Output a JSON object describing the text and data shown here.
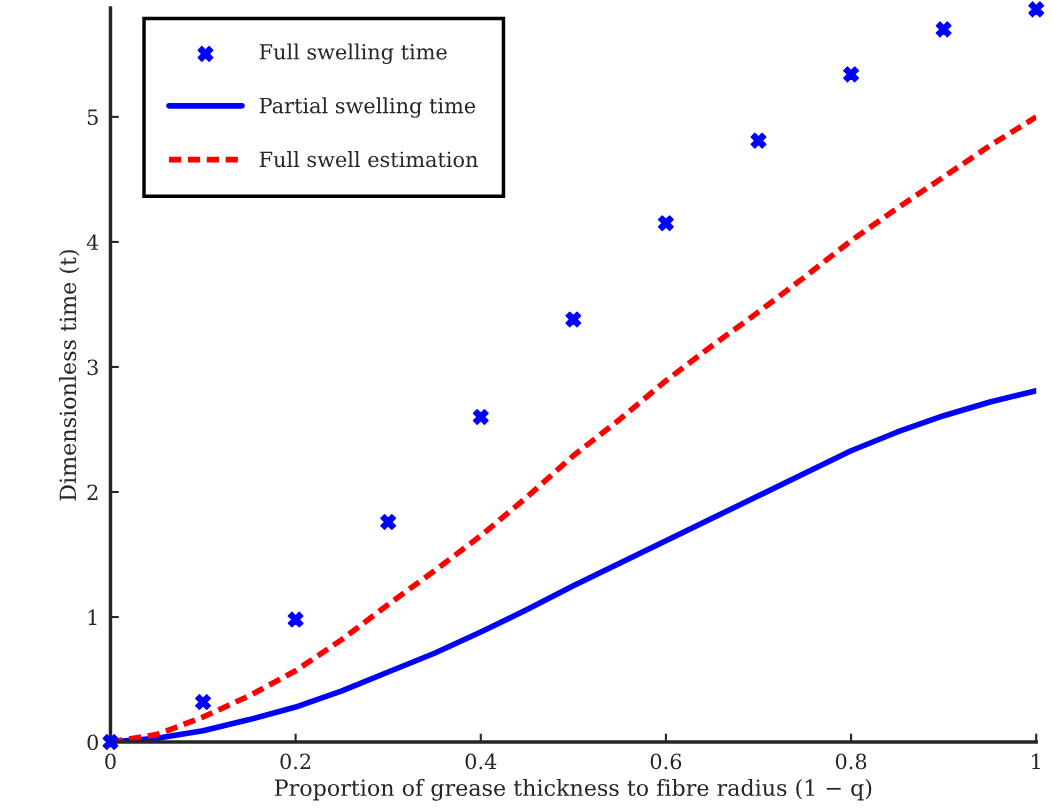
{
  "chart_data": {
    "type": "scatter",
    "xlabel": "Proportion of grease thickness to fibre radius (1 − q)",
    "ylabel": "Dimensionless time (t)",
    "xlim": [
      0,
      1
    ],
    "ylim": [
      0,
      5.87
    ],
    "xticks": [
      0,
      0.2,
      0.4,
      0.6,
      0.8,
      1
    ],
    "yticks": [
      0,
      1,
      2,
      3,
      4,
      5
    ],
    "grid": false,
    "legend": "top left",
    "series": [
      {
        "name": "Full swelling time",
        "marker": "cross",
        "color": "#0000ff",
        "x": [
          0,
          0.1,
          0.2,
          0.3,
          0.4,
          0.5,
          0.6,
          0.7,
          0.8,
          0.9,
          1
        ],
        "values": [
          0,
          0.32,
          0.98,
          1.76,
          2.6,
          3.38,
          4.15,
          4.81,
          5.34,
          5.7,
          5.86
        ]
      },
      {
        "name": "Partial swelling time",
        "type": "line",
        "marker": "none",
        "line_style": "solid",
        "color": "#0000ff",
        "x": [
          0,
          0.05,
          0.1,
          0.15,
          0.2,
          0.25,
          0.3,
          0.35,
          0.4,
          0.45,
          0.5,
          0.55,
          0.6,
          0.65,
          0.7,
          0.75,
          0.8,
          0.85,
          0.9,
          0.95,
          1
        ],
        "values": [
          0,
          0.03,
          0.09,
          0.18,
          0.28,
          0.41,
          0.56,
          0.71,
          0.88,
          1.06,
          1.25,
          1.43,
          1.61,
          1.79,
          1.97,
          2.15,
          2.33,
          2.48,
          2.61,
          2.72,
          2.81
        ]
      },
      {
        "name": "Full swell estimation",
        "type": "line",
        "marker": "none",
        "line_style": "dashed",
        "color": "#ff0000",
        "x": [
          0,
          0.05,
          0.1,
          0.15,
          0.2,
          0.25,
          0.3,
          0.35,
          0.4,
          0.45,
          0.5,
          0.55,
          0.6,
          0.65,
          0.7,
          0.75,
          0.8,
          0.85,
          0.9,
          0.95,
          1
        ],
        "values": [
          0,
          0.06,
          0.2,
          0.37,
          0.57,
          0.82,
          1.1,
          1.37,
          1.65,
          1.96,
          2.29,
          2.58,
          2.89,
          3.17,
          3.44,
          3.72,
          4.01,
          4.27,
          4.52,
          4.77,
          5.0
        ]
      }
    ]
  }
}
